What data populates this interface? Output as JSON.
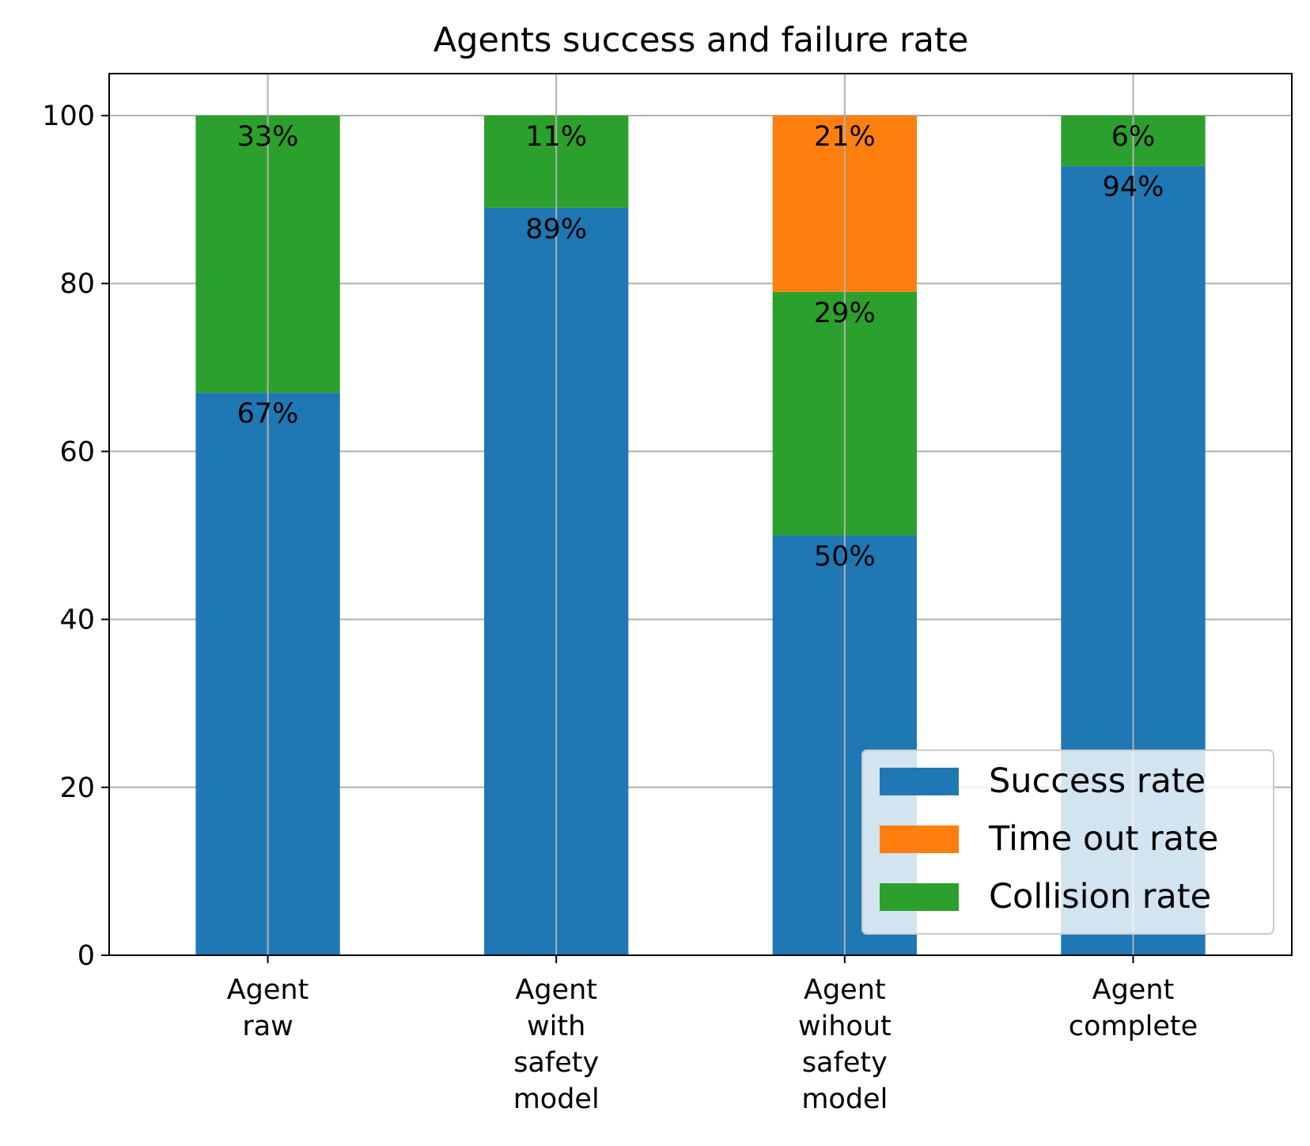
{
  "chart_data": {
    "type": "bar",
    "stacked": true,
    "title": "Agents success and failure rate",
    "xlabel": "",
    "ylabel": "",
    "ylim": [
      0,
      105
    ],
    "yticks": [
      0,
      20,
      40,
      60,
      80,
      100
    ],
    "grid": true,
    "legend_position": "lower-right",
    "categories": [
      [
        "Agent",
        "raw"
      ],
      [
        "Agent",
        "with",
        "safety",
        "model"
      ],
      [
        "Agent",
        "wihout",
        "safety",
        "model"
      ],
      [
        "Agent",
        "complete"
      ]
    ],
    "series": [
      {
        "name": "Success rate",
        "color": "#1f77b4",
        "values": [
          67,
          89,
          50,
          94
        ]
      },
      {
        "name": "Time out rate",
        "color": "#ff7f0e",
        "values": [
          0,
          0,
          21,
          0
        ]
      },
      {
        "name": "Collision rate",
        "color": "#2ca02c",
        "values": [
          33,
          11,
          29,
          6
        ]
      }
    ],
    "stack_order": [
      "Success rate",
      "Collision rate",
      "Time out rate"
    ],
    "bar_labels": [
      [
        "67%",
        "33%"
      ],
      [
        "89%",
        "11%"
      ],
      [
        "50%",
        "29%",
        "21%"
      ],
      [
        "94%",
        "6%"
      ]
    ]
  }
}
